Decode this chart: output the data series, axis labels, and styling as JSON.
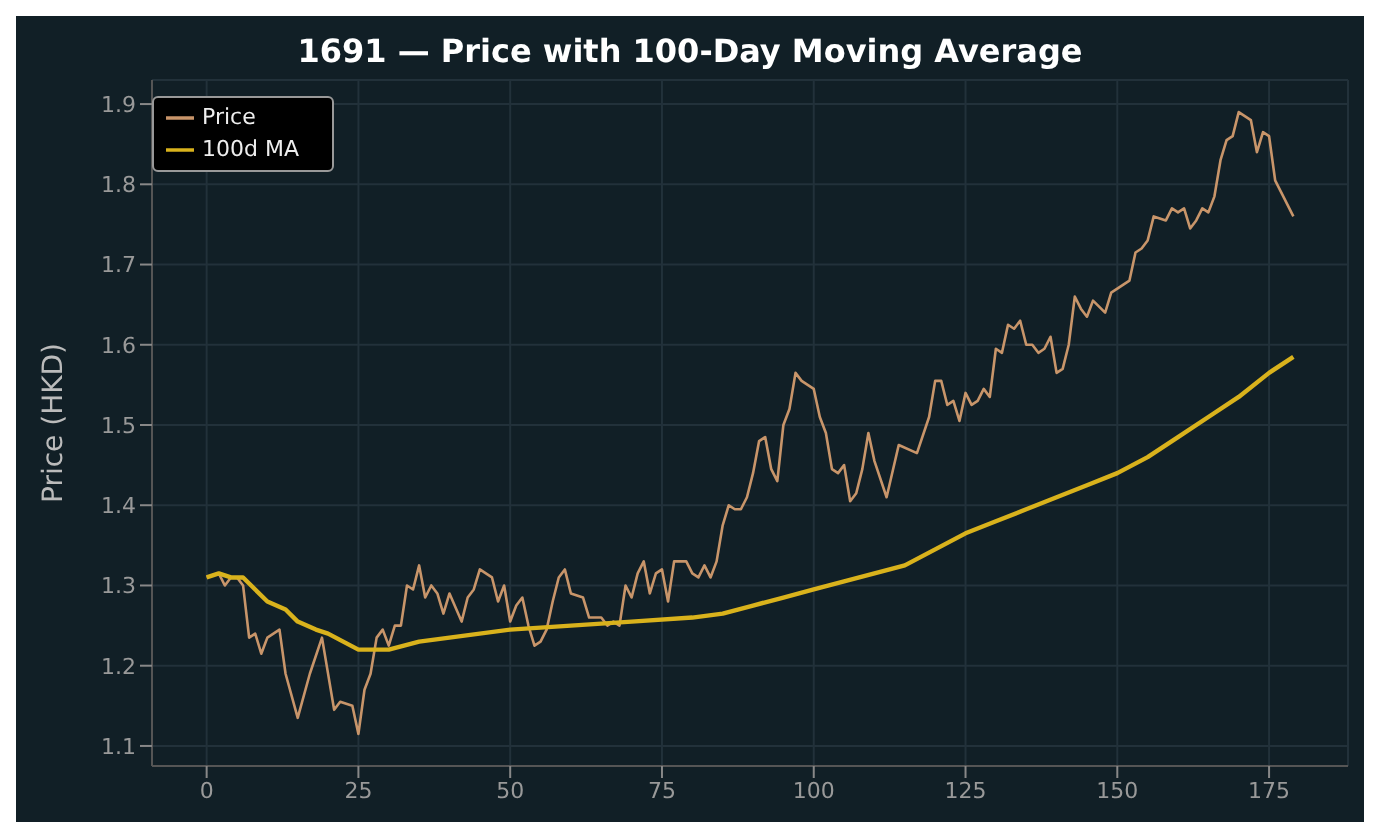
{
  "chart_data": {
    "type": "line",
    "title": "1691 — Price with 100-Day Moving Average",
    "ylabel": "Price (HKD)",
    "xlim": [
      -9,
      188
    ],
    "xticks": [
      0,
      25,
      50,
      75,
      100,
      125,
      150,
      175
    ],
    "ylim": [
      1.075,
      1.93
    ],
    "yticks": [
      1.1,
      1.2,
      1.3,
      1.4,
      1.5,
      1.6,
      1.7,
      1.8,
      1.9
    ],
    "grid": true,
    "legend": "top left",
    "marker": "none",
    "line_style": "solid",
    "series": [
      {
        "name": "Price",
        "color": "#c8956a",
        "x": [
          0,
          2,
          3,
          4,
          5,
          6,
          7,
          8,
          9,
          10,
          12,
          13,
          15,
          17,
          19,
          21,
          22,
          24,
          25,
          26,
          27,
          28,
          29,
          30,
          31,
          32,
          33,
          34,
          35,
          36,
          37,
          38,
          39,
          40,
          42,
          43,
          44,
          45,
          47,
          48,
          49,
          50,
          51,
          52,
          53,
          54,
          55,
          56,
          57,
          58,
          59,
          60,
          62,
          63,
          65,
          66,
          67,
          68,
          69,
          70,
          71,
          72,
          73,
          74,
          75,
          76,
          77,
          79,
          80,
          81,
          82,
          83,
          84,
          85,
          86,
          87,
          88,
          89,
          90,
          91,
          92,
          93,
          94,
          95,
          96,
          97,
          98,
          99,
          100,
          101,
          102,
          103,
          104,
          105,
          106,
          107,
          108,
          109,
          110,
          112,
          114,
          117,
          119,
          120,
          121,
          122,
          123,
          124,
          125,
          126,
          127,
          128,
          129,
          130,
          131,
          132,
          133,
          134,
          135,
          136,
          137,
          138,
          139,
          140,
          141,
          142,
          143,
          144,
          145,
          146,
          148,
          149,
          151,
          152,
          153,
          154,
          155,
          156,
          158,
          159,
          160,
          161,
          162,
          163,
          164,
          165,
          166,
          167,
          168,
          169,
          170,
          172,
          173,
          174,
          175,
          176,
          177,
          179
        ],
        "values": [
          1.31,
          1.315,
          1.3,
          1.31,
          1.31,
          1.3,
          1.235,
          1.24,
          1.215,
          1.235,
          1.245,
          1.19,
          1.135,
          1.19,
          1.235,
          1.145,
          1.155,
          1.15,
          1.115,
          1.17,
          1.19,
          1.235,
          1.245,
          1.225,
          1.25,
          1.25,
          1.3,
          1.295,
          1.325,
          1.285,
          1.3,
          1.29,
          1.265,
          1.29,
          1.255,
          1.285,
          1.295,
          1.32,
          1.31,
          1.28,
          1.3,
          1.255,
          1.275,
          1.285,
          1.25,
          1.225,
          1.23,
          1.245,
          1.28,
          1.31,
          1.32,
          1.29,
          1.285,
          1.26,
          1.26,
          1.25,
          1.255,
          1.25,
          1.3,
          1.285,
          1.315,
          1.33,
          1.29,
          1.315,
          1.32,
          1.28,
          1.33,
          1.33,
          1.315,
          1.31,
          1.325,
          1.31,
          1.33,
          1.375,
          1.4,
          1.395,
          1.395,
          1.41,
          1.44,
          1.48,
          1.485,
          1.445,
          1.43,
          1.5,
          1.52,
          1.565,
          1.555,
          1.55,
          1.545,
          1.51,
          1.49,
          1.445,
          1.44,
          1.45,
          1.405,
          1.415,
          1.445,
          1.49,
          1.455,
          1.41,
          1.475,
          1.465,
          1.51,
          1.555,
          1.555,
          1.525,
          1.53,
          1.505,
          1.54,
          1.525,
          1.53,
          1.545,
          1.535,
          1.595,
          1.59,
          1.625,
          1.62,
          1.63,
          1.6,
          1.6,
          1.59,
          1.595,
          1.61,
          1.565,
          1.57,
          1.6,
          1.66,
          1.645,
          1.635,
          1.655,
          1.64,
          1.665,
          1.675,
          1.68,
          1.715,
          1.72,
          1.73,
          1.76,
          1.755,
          1.77,
          1.765,
          1.77,
          1.745,
          1.755,
          1.77,
          1.765,
          1.785,
          1.83,
          1.855,
          1.86,
          1.89,
          1.88,
          1.84,
          1.865,
          1.86,
          1.805,
          1.79,
          1.76
        ]
      },
      {
        "name": "100d MA",
        "color": "#d9b21c",
        "x": [
          0,
          2,
          4,
          6,
          8,
          10,
          13,
          15,
          18,
          20,
          25,
          30,
          35,
          40,
          50,
          60,
          70,
          80,
          85,
          90,
          95,
          100,
          105,
          110,
          115,
          120,
          125,
          130,
          135,
          140,
          145,
          150,
          155,
          160,
          165,
          170,
          175,
          179
        ],
        "values": [
          1.31,
          1.315,
          1.31,
          1.31,
          1.295,
          1.28,
          1.27,
          1.255,
          1.245,
          1.24,
          1.22,
          1.22,
          1.23,
          1.235,
          1.245,
          1.25,
          1.255,
          1.26,
          1.265,
          1.275,
          1.285,
          1.295,
          1.305,
          1.315,
          1.325,
          1.345,
          1.365,
          1.38,
          1.395,
          1.41,
          1.425,
          1.44,
          1.46,
          1.485,
          1.51,
          1.535,
          1.565,
          1.585
        ]
      }
    ]
  }
}
